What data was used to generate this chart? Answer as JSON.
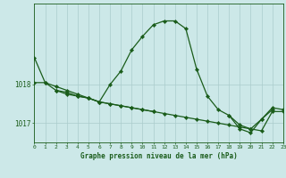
{
  "title": "Graphe pression niveau de la mer (hPa)",
  "bg_color": "#cce8e8",
  "grid_color": "#aacccc",
  "line_color": "#1a5c1a",
  "hours": [
    0,
    1,
    2,
    3,
    4,
    5,
    6,
    7,
    8,
    9,
    10,
    11,
    12,
    13,
    14,
    15,
    16,
    17,
    18,
    19,
    20,
    21,
    22,
    23
  ],
  "line1": [
    1018.7,
    1018.05,
    1017.85,
    1017.75,
    1017.7,
    1017.65,
    1017.55,
    1018.0,
    1018.35,
    1018.9,
    1019.25,
    1019.55,
    1019.65,
    1019.65,
    1019.45,
    1018.4,
    1017.7,
    1017.35,
    1017.2,
    1016.85,
    1016.75,
    1017.1,
    1017.4,
    1017.35
  ],
  "line2": [
    null,
    null,
    null,
    null,
    null,
    null,
    null,
    null,
    null,
    null,
    null,
    null,
    null,
    null,
    null,
    null,
    null,
    null,
    null,
    null,
    null,
    null,
    null,
    null
  ],
  "line_flat": [
    1018.05,
    1018.05,
    1017.95,
    1017.85,
    1017.75,
    1017.65,
    1017.55,
    1017.5,
    1017.45,
    1017.4,
    1017.35,
    1017.3,
    1017.25,
    1017.2,
    1017.15,
    1017.1,
    1017.05,
    1017.0,
    1016.95,
    1016.9,
    1016.85,
    1016.8,
    1017.3,
    1017.3
  ],
  "line_mid": [
    null,
    null,
    1017.85,
    1017.8,
    1017.7,
    1017.65,
    1017.55,
    1017.5,
    1017.45,
    1017.4,
    1017.35,
    1017.3,
    null,
    null,
    null,
    null,
    null,
    null,
    1017.2,
    1016.95,
    1016.85,
    1017.1,
    1017.35,
    null
  ],
  "xlim": [
    0,
    23
  ],
  "ylim": [
    1016.5,
    1020.1
  ],
  "yticks": [
    1017,
    1018
  ],
  "ytick_labels": [
    "1017",
    "1018"
  ]
}
